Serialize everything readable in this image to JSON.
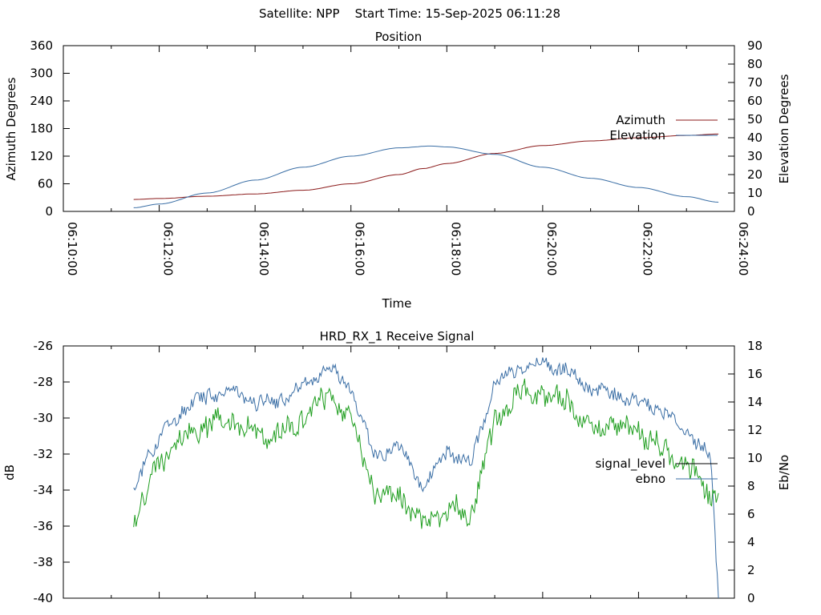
{
  "page": {
    "suptitle": "Satellite: NPP    Start Time: 15-Sep-2025 06:11:28"
  },
  "chart_data": [
    {
      "type": "line",
      "title": "Position",
      "xlabel": "Time",
      "ylabel": "Azimuth Degrees",
      "y2label": "Elevation Degrees",
      "xlim": [
        "06:10:00",
        "06:24:00"
      ],
      "ylim": [
        0,
        360
      ],
      "y2lim": [
        0,
        90
      ],
      "x_ticks": [
        "06:10:00",
        "06:12:00",
        "06:14:00",
        "06:16:00",
        "06:18:00",
        "06:20:00",
        "06:22:00",
        "06:24:00"
      ],
      "y_ticks": [
        "0",
        "60",
        "120",
        "180",
        "240",
        "300",
        "360"
      ],
      "y2_ticks": [
        "0",
        "10",
        "20",
        "30",
        "40",
        "50",
        "60",
        "70",
        "80",
        "90"
      ],
      "legend_position": "right",
      "series": [
        {
          "name": "Azimuth",
          "axis": "y",
          "color": "#8b1a1a",
          "x": [
            "06:11:28",
            "06:12:00",
            "06:13:00",
            "06:14:00",
            "06:15:00",
            "06:16:00",
            "06:17:00",
            "06:17:30",
            "06:18:00",
            "06:19:00",
            "06:20:00",
            "06:21:00",
            "06:22:00",
            "06:23:00",
            "06:23:40"
          ],
          "values": [
            26,
            28,
            33,
            38,
            46,
            60,
            80,
            93,
            104,
            126,
            143,
            153,
            160,
            165,
            168
          ]
        },
        {
          "name": "Elevation",
          "axis": "y2",
          "color": "#3a6ea5",
          "x": [
            "06:11:28",
            "06:12:00",
            "06:13:00",
            "06:14:00",
            "06:15:00",
            "06:16:00",
            "06:17:00",
            "06:17:40",
            "06:18:00",
            "06:19:00",
            "06:20:00",
            "06:21:00",
            "06:22:00",
            "06:23:00",
            "06:23:40"
          ],
          "values": [
            2,
            4,
            10,
            17,
            24,
            30,
            34.5,
            35.5,
            35,
            31,
            24,
            18,
            13,
            8,
            5
          ]
        }
      ]
    },
    {
      "type": "line",
      "title": "HRD_RX_1 Receive Signal",
      "xlabel": "",
      "ylabel": "dB",
      "y2label": "Eb/No",
      "xlim": [
        "06:10:00",
        "06:24:00"
      ],
      "ylim": [
        -40,
        -26
      ],
      "y2lim": [
        0,
        18
      ],
      "y_ticks": [
        "-40",
        "-38",
        "-36",
        "-34",
        "-32",
        "-30",
        "-28",
        "-26"
      ],
      "y2_ticks": [
        "0",
        "2",
        "4",
        "6",
        "8",
        "10",
        "12",
        "14",
        "16",
        "18"
      ],
      "legend_position": "right",
      "series": [
        {
          "name": "signal_level",
          "axis": "y",
          "color": "#000000",
          "x": [],
          "values": []
        },
        {
          "name": "ebno",
          "axis": "y2",
          "color": "#3a6ea5",
          "x": [
            "06:11:28",
            "06:11:40",
            "06:12:00",
            "06:12:30",
            "06:13:00",
            "06:13:30",
            "06:14:00",
            "06:14:30",
            "06:15:00",
            "06:15:30",
            "06:16:00",
            "06:16:30",
            "06:17:00",
            "06:17:30",
            "06:18:00",
            "06:18:30",
            "06:19:00",
            "06:19:30",
            "06:20:00",
            "06:20:30",
            "06:21:00",
            "06:21:30",
            "06:22:00",
            "06:22:30",
            "06:23:00",
            "06:23:30",
            "06:23:40"
          ],
          "values": [
            7.5,
            9.5,
            11.5,
            13.5,
            14.5,
            14.8,
            14,
            14.2,
            15,
            16.5,
            15,
            10,
            11,
            8,
            10.5,
            9.5,
            15.5,
            16.5,
            16.8,
            16.2,
            15,
            14.5,
            14,
            13.5,
            12,
            10,
            0
          ]
        },
        {
          "name": "",
          "axis": "y2",
          "color": "#1f9e1f",
          "x": [
            "06:11:28",
            "06:11:40",
            "06:12:00",
            "06:12:30",
            "06:13:00",
            "06:13:30",
            "06:14:00",
            "06:14:30",
            "06:15:00",
            "06:15:30",
            "06:16:00",
            "06:16:30",
            "06:17:00",
            "06:17:30",
            "06:18:00",
            "06:18:30",
            "06:19:00",
            "06:19:30",
            "06:20:00",
            "06:20:30",
            "06:21:00",
            "06:21:30",
            "06:22:00",
            "06:22:30",
            "06:23:00",
            "06:23:30",
            "06:23:40"
          ],
          "values": [
            5,
            7.5,
            9.5,
            11.5,
            12.5,
            12.8,
            11.5,
            11.5,
            13,
            14.5,
            12.5,
            7.5,
            7.5,
            5,
            6.5,
            6,
            12.5,
            14.5,
            14.8,
            14,
            12,
            12.5,
            12,
            10.5,
            9.5,
            7.5,
            7.5
          ]
        }
      ]
    }
  ]
}
